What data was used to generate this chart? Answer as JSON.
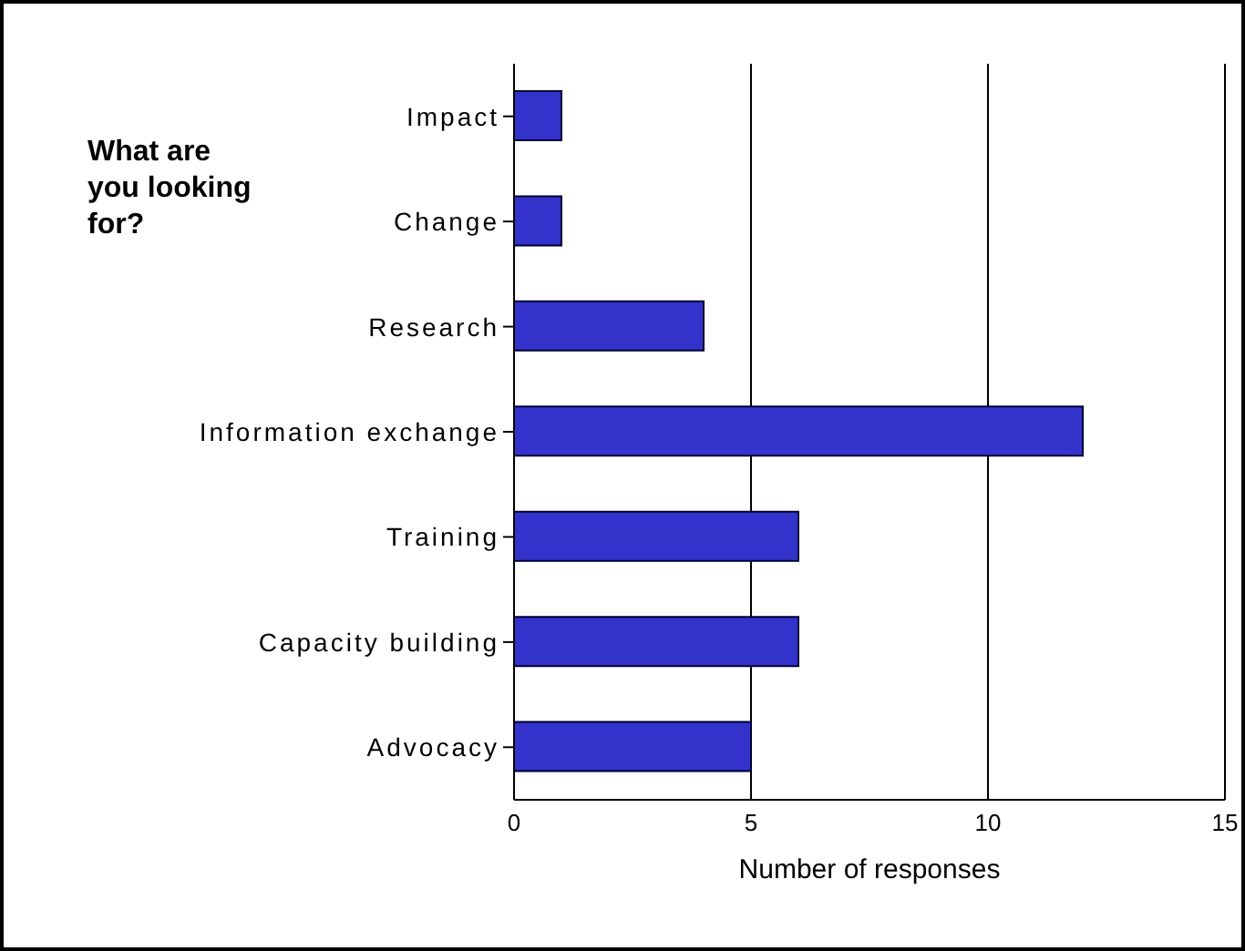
{
  "chart_data": {
    "type": "bar",
    "orientation": "horizontal",
    "title": "What are you looking for?",
    "xlabel": "Number of responses",
    "categories": [
      "Impact",
      "Change",
      "Research",
      "Information exchange",
      "Training",
      "Capacity building",
      "Advocacy"
    ],
    "values": [
      1,
      1,
      4,
      12,
      6,
      6,
      5
    ],
    "color": "#3333cc",
    "xlim": [
      0,
      15
    ],
    "xticks": [
      0,
      5,
      10,
      15
    ],
    "grid": "x"
  }
}
